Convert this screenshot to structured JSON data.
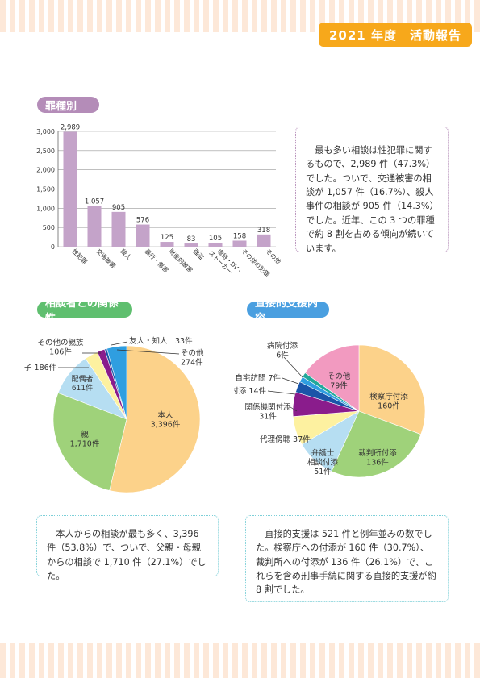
{
  "header": {
    "title": "2021 年度　活動報告"
  },
  "sections": {
    "crime_type": "罪種別",
    "relationship": "相談者との関係性",
    "direct_support": "直接的支援内容"
  },
  "text": {
    "crime_summary": "最も多い相談は性犯罪に関するもので、2,989 件（47.3%）でした。ついで、交通被害の相談が 1,057 件（16.7%）、殺人事件の相談が 905 件（14.3%）でした。近年、この 3 つの罪種で約 8 割を占める傾向が続いています。",
    "relationship_summary": "本人からの相談が最も多く、3,396 件（53.8%）で、ついで、父親・母親からの相談で 1,710 件（27.1%）でした。",
    "support_summary": "直接的支援は 521 件と例年並みの数でした。検察庁への付添が 160 件（30.7%）、裁判所への付添が 136 件（26.1%）で、これらを含め刑事手続に関する直接的支援が約 8 割でした。"
  },
  "chart_data": [
    {
      "type": "bar",
      "categories": [
        "性犯罪",
        "交通被害",
        "殺人",
        "暴行・傷害",
        "財産的被害",
        "強盗",
        "虐待・DV・ストーカー",
        "その他の犯罪",
        "その他"
      ],
      "values": [
        2989,
        1057,
        905,
        576,
        125,
        83,
        105,
        158,
        318
      ],
      "value_labels": [
        "2,989",
        "1,057",
        "905",
        "576",
        "125",
        "83",
        "105",
        "158",
        "318"
      ],
      "ylim": [
        0,
        3000
      ],
      "yticks": [
        "0",
        "500",
        "1,000",
        "1,500",
        "2,000",
        "2,500",
        "3,000"
      ],
      "color": "#c4a3c9",
      "grid": true
    },
    {
      "type": "pie",
      "slices": [
        {
          "label": "本人",
          "value_label": "3,396件",
          "value": 3396,
          "color": "#fcd28a"
        },
        {
          "label": "親",
          "value_label": "1,710件",
          "value": 1710,
          "color": "#9fd27a"
        },
        {
          "label": "配偶者",
          "value_label": "611件",
          "value": 611,
          "color": "#b6def2"
        },
        {
          "label": "子",
          "value_label": "186件",
          "value": 186,
          "color": "#fdf1a0"
        },
        {
          "label": "その他の親族",
          "value_label": "106件",
          "value": 106,
          "color": "#8a1c8c"
        },
        {
          "label": "友人・知人",
          "value_label": "33件",
          "value": 33,
          "color": "#1a55a8"
        },
        {
          "label": "その他",
          "value_label": "274件",
          "value": 274,
          "color": "#2f9ee0"
        }
      ]
    },
    {
      "type": "pie",
      "slices": [
        {
          "label": "検察庁付添",
          "value_label": "160件",
          "value": 160,
          "color": "#fcd28a"
        },
        {
          "label": "裁判所付添",
          "value_label": "136件",
          "value": 136,
          "color": "#9fd27a"
        },
        {
          "label": "弁護士相談付添",
          "value_label": "51件",
          "value": 51,
          "color": "#b6def2"
        },
        {
          "label": "代理傍聴",
          "value_label": "37件",
          "value": 37,
          "color": "#fdf1a0"
        },
        {
          "label": "関係機関付添",
          "value_label": "31件",
          "value": 31,
          "color": "#8a1c8c"
        },
        {
          "label": "警察署付添",
          "value_label": "14件",
          "value": 14,
          "color": "#1a55a8"
        },
        {
          "label": "自宅訪問",
          "value_label": "7件",
          "value": 7,
          "color": "#2f9ee0"
        },
        {
          "label": "病院付添",
          "value_label": "6件",
          "value": 6,
          "color": "#22a89a"
        },
        {
          "label": "その他",
          "value_label": "79件",
          "value": 79,
          "color": "#f29ac0"
        }
      ]
    }
  ]
}
